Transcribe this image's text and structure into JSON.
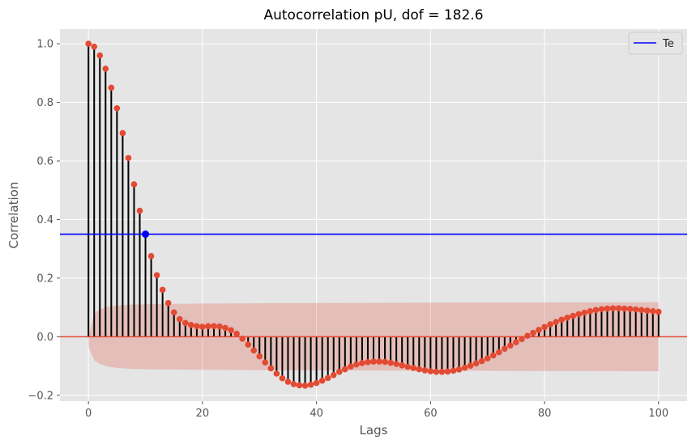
{
  "chart_data": {
    "type": "stem",
    "title": "Autocorrelation pU, dof = 182.6",
    "xlabel": "Lags",
    "ylabel": "Correlation",
    "xlim": [
      -5,
      105
    ],
    "ylim": [
      -0.22,
      1.05
    ],
    "grid": true,
    "legend_position": "top-right",
    "x_ticks": [
      0,
      20,
      40,
      60,
      80,
      100
    ],
    "y_ticks": [
      -0.2,
      0.0,
      0.2,
      0.4,
      0.6,
      0.8,
      1.0
    ],
    "x_tick_labels": [
      "0",
      "20",
      "40",
      "60",
      "80",
      "100"
    ],
    "y_tick_labels": [
      "−0.2",
      "0.0",
      "0.2",
      "0.4",
      "0.6",
      "0.8",
      "1.0"
    ],
    "lags": [
      0,
      1,
      2,
      3,
      4,
      5,
      6,
      7,
      8,
      9,
      10,
      11,
      12,
      13,
      14,
      15,
      16,
      17,
      18,
      19,
      20,
      21,
      22,
      23,
      24,
      25,
      26,
      27,
      28,
      29,
      30,
      31,
      32,
      33,
      34,
      35,
      36,
      37,
      38,
      39,
      40,
      41,
      42,
      43,
      44,
      45,
      46,
      47,
      48,
      49,
      50,
      51,
      52,
      53,
      54,
      55,
      56,
      57,
      58,
      59,
      60,
      61,
      62,
      63,
      64,
      65,
      66,
      67,
      68,
      69,
      70,
      71,
      72,
      73,
      74,
      75,
      76,
      77,
      78,
      79,
      80,
      81,
      82,
      83,
      84,
      85,
      86,
      87,
      88,
      89,
      90,
      91,
      92,
      93,
      94,
      95,
      96,
      97,
      98,
      99,
      100
    ],
    "acf": [
      1.0,
      0.99,
      0.96,
      0.915,
      0.85,
      0.78,
      0.695,
      0.61,
      0.52,
      0.43,
      0.35,
      0.275,
      0.21,
      0.16,
      0.115,
      0.083,
      0.06,
      0.047,
      0.04,
      0.036,
      0.034,
      0.036,
      0.036,
      0.035,
      0.03,
      0.022,
      0.01,
      -0.007,
      -0.027,
      -0.047,
      -0.067,
      -0.088,
      -0.108,
      -0.126,
      -0.142,
      -0.154,
      -0.162,
      -0.166,
      -0.167,
      -0.164,
      -0.158,
      -0.15,
      -0.141,
      -0.131,
      -0.12,
      -0.111,
      -0.102,
      -0.095,
      -0.09,
      -0.087,
      -0.085,
      -0.085,
      -0.086,
      -0.089,
      -0.093,
      -0.098,
      -0.103,
      -0.107,
      -0.111,
      -0.115,
      -0.118,
      -0.12,
      -0.12,
      -0.119,
      -0.116,
      -0.112,
      -0.106,
      -0.099,
      -0.091,
      -0.083,
      -0.074,
      -0.064,
      -0.053,
      -0.041,
      -0.03,
      -0.019,
      -0.008,
      0.003,
      0.013,
      0.023,
      0.033,
      0.042,
      0.05,
      0.058,
      0.065,
      0.071,
      0.077,
      0.082,
      0.087,
      0.091,
      0.094,
      0.096,
      0.097,
      0.097,
      0.096,
      0.095,
      0.093,
      0.091,
      0.089,
      0.087,
      0.085
    ],
    "conf_band": {
      "lags": [
        0,
        1,
        2,
        3,
        4,
        5,
        6,
        8,
        10,
        15,
        20,
        30,
        40,
        60,
        80,
        100
      ],
      "upper": [
        0.0,
        0.08,
        0.093,
        0.1,
        0.104,
        0.106,
        0.108,
        0.11,
        0.111,
        0.112,
        0.113,
        0.114,
        0.115,
        0.116,
        0.117,
        0.118
      ],
      "lower": [
        -0.035,
        -0.08,
        -0.093,
        -0.1,
        -0.104,
        -0.106,
        -0.108,
        -0.11,
        -0.111,
        -0.112,
        -0.113,
        -0.114,
        -0.115,
        -0.116,
        -0.117,
        -0.118
      ]
    },
    "threshold": {
      "name": "Te",
      "value": 0.35,
      "marker_lag": 10
    },
    "colors": {
      "markers": "#e24a33",
      "stems": "#000000",
      "band": "#e24a33",
      "threshold": "#0000ff",
      "zero_line": "#e24a33",
      "plot_background": "#e5e5e5",
      "grid": "#ffffff"
    }
  }
}
